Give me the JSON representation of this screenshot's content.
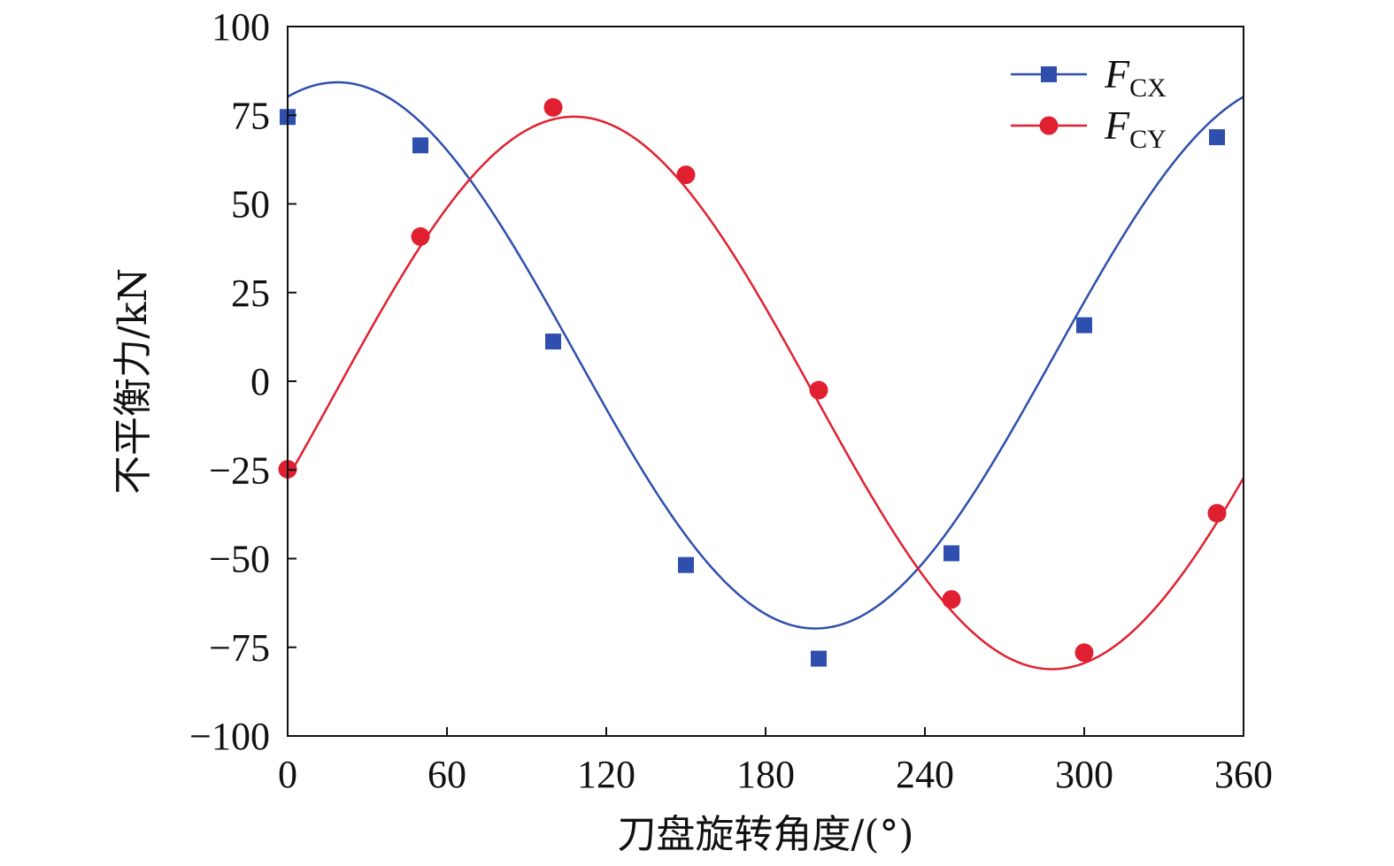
{
  "chart_data": {
    "type": "line",
    "xlabel": "刀盘旋转角度/(°)",
    "ylabel": "不平衡力/kN",
    "xlim": [
      0,
      360
    ],
    "ylim": [
      -100,
      100
    ],
    "x_ticks": [
      0,
      60,
      120,
      180,
      240,
      300,
      360
    ],
    "y_ticks": [
      100,
      75,
      50,
      25,
      0,
      -25,
      -50,
      -75,
      -100
    ],
    "y_tick_labels": [
      "100",
      "75",
      "50",
      "25",
      "0",
      "−25",
      "−50",
      "−75",
      "−100"
    ],
    "grid": false,
    "legend_position": "top-right",
    "series": [
      {
        "name": "F_CX",
        "legend_main": "F",
        "legend_sub": "CX",
        "color": "#2e4fad",
        "marker": "square",
        "x": [
          0,
          50,
          100,
          150,
          200,
          250,
          300,
          350
        ],
        "y": [
          74.5,
          66.5,
          11.2,
          -51.8,
          -78.2,
          -48.5,
          15.8,
          68.8
        ]
      },
      {
        "name": "F_CY",
        "legend_main": "F",
        "legend_sub": "CY",
        "color": "#e02030",
        "marker": "circle",
        "x": [
          0,
          50,
          100,
          150,
          200,
          250,
          300,
          350
        ],
        "y": [
          -24.8,
          40.8,
          77.2,
          58.2,
          -2.5,
          -61.5,
          -76.5,
          -37.2
        ]
      }
    ]
  }
}
